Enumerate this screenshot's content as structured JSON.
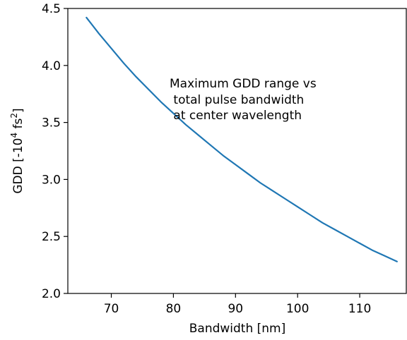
{
  "chart_data": {
    "type": "line",
    "title": "",
    "xlabel": "Bandwidth [nm]",
    "ylabel": "GDD [-10^4 fs^2]",
    "ylabel_parts": {
      "pre": "GDD [-10",
      "exp1": "4",
      "mid": " fs",
      "exp2": "2",
      "post": "]"
    },
    "xlim": [
      63,
      117.5
    ],
    "ylim": [
      2.0,
      4.5
    ],
    "xticks": [
      70,
      80,
      90,
      100,
      110
    ],
    "yticks": [
      2.0,
      2.5,
      3.0,
      3.5,
      4.0,
      4.5
    ],
    "xtick_labels": [
      "70",
      "80",
      "90",
      "100",
      "110"
    ],
    "ytick_labels": [
      "2.0",
      "2.5",
      "3.0",
      "3.5",
      "4.0",
      "4.5"
    ],
    "grid": false,
    "series": [
      {
        "color": "#1f77b4",
        "x": [
          66,
          68,
          70,
          72,
          74,
          76,
          78,
          80,
          82,
          84,
          86,
          88,
          90,
          92,
          94,
          96,
          98,
          100,
          102,
          104,
          106,
          108,
          110,
          112,
          114,
          116
        ],
        "y": [
          4.42,
          4.28,
          4.15,
          4.02,
          3.9,
          3.79,
          3.68,
          3.58,
          3.48,
          3.39,
          3.3,
          3.21,
          3.13,
          3.05,
          2.97,
          2.9,
          2.83,
          2.76,
          2.69,
          2.62,
          2.56,
          2.5,
          2.44,
          2.38,
          2.33,
          2.28
        ]
      }
    ],
    "annotation": [
      "Maximum GDD range vs",
      " total pulse bandwidth",
      " at center wavelength"
    ]
  }
}
